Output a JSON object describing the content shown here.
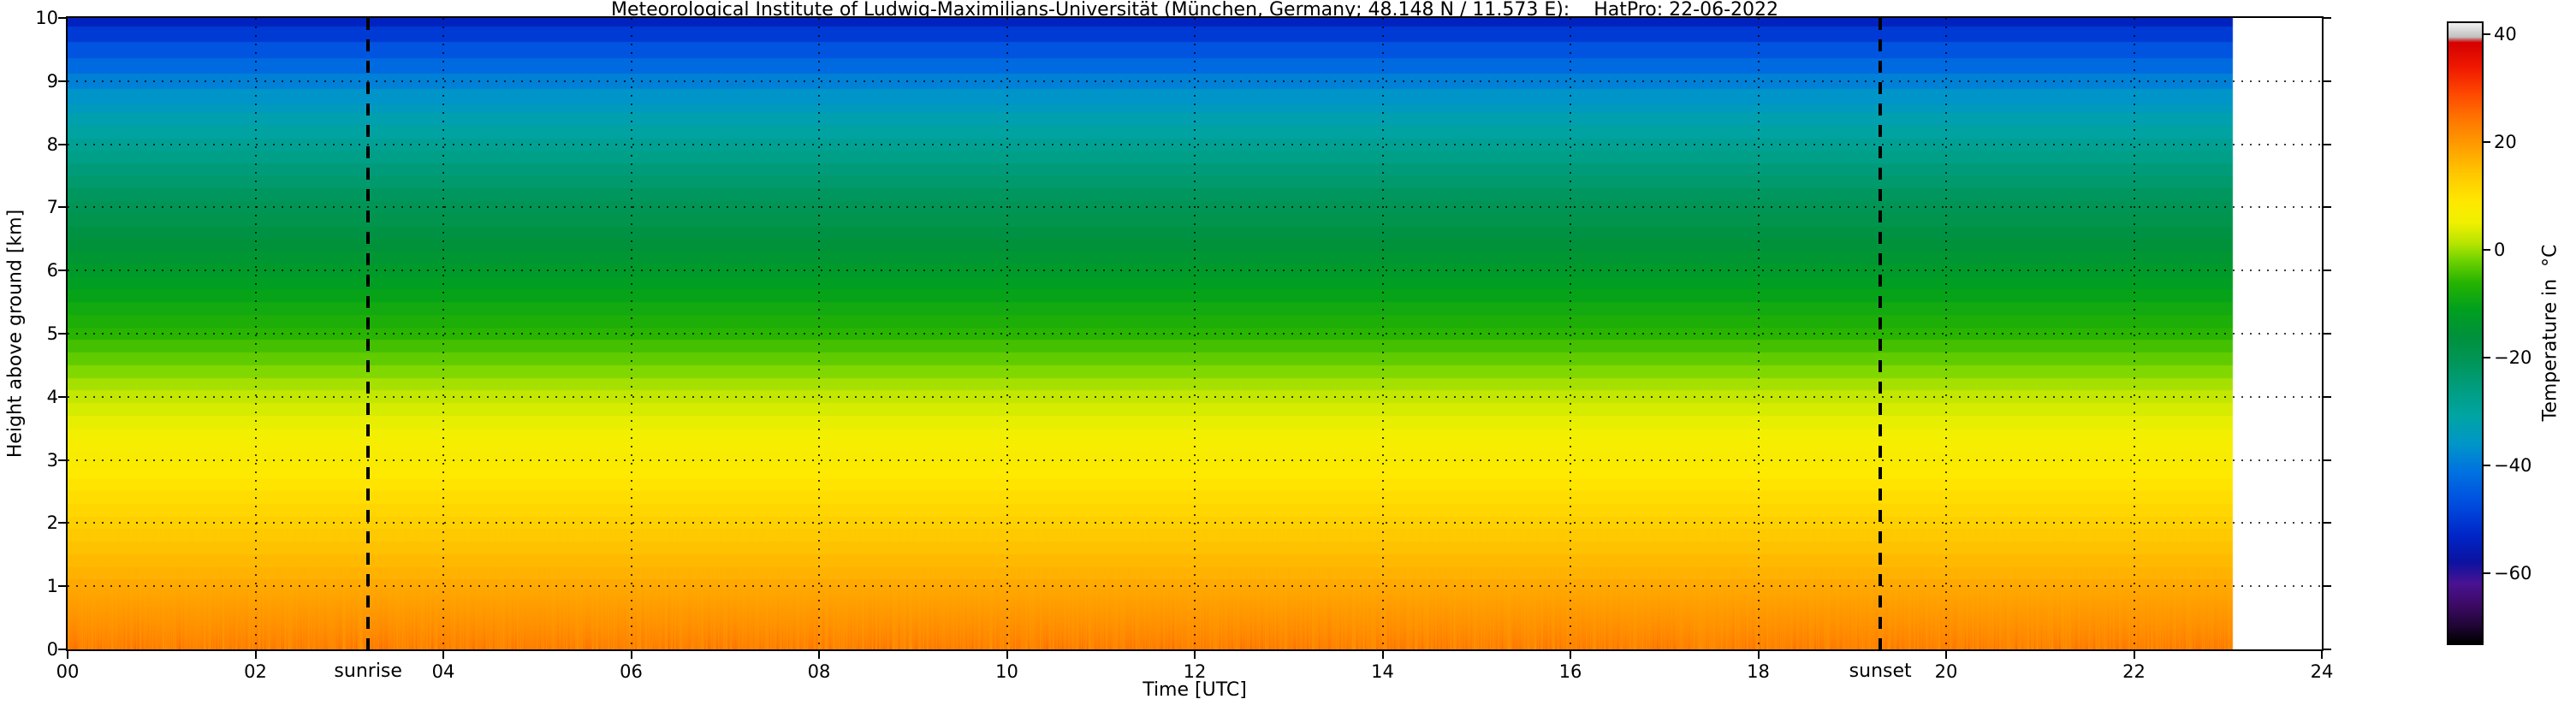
{
  "figure": {
    "background": "#ffffff"
  },
  "chart_data": {
    "type": "heatmap",
    "title": "Meteorological Institute of Ludwig-Maximilians-Universität (München, Germany; 48.148 N / 11.573 E):    HatPro: 22-06-2022",
    "xlabel": "Time [UTC]",
    "ylabel": "Height above ground [km]",
    "x_range": [
      0,
      24
    ],
    "x_tick_values": [
      0,
      2,
      4,
      6,
      8,
      10,
      12,
      14,
      16,
      18,
      20,
      22,
      24
    ],
    "x_tick_labels": [
      "00",
      "02",
      "04",
      "06",
      "08",
      "10",
      "12",
      "14",
      "16",
      "18",
      "20",
      "22",
      "24"
    ],
    "y_range": [
      0,
      10
    ],
    "y_tick_values": [
      0,
      1,
      2,
      3,
      4,
      5,
      6,
      7,
      8,
      9,
      10
    ],
    "y_tick_labels": [
      "0",
      "1",
      "2",
      "3",
      "4",
      "5",
      "6",
      "7",
      "8",
      "9",
      "10"
    ],
    "grid": true,
    "data_time_end": 23.05,
    "annotations": [
      {
        "name": "sunrise",
        "label": "sunrise",
        "time": 3.2,
        "style": "dashed"
      },
      {
        "name": "sunset",
        "label": "sunset",
        "time": 19.3,
        "style": "dashed"
      }
    ],
    "colorbar": {
      "label": "Temperature in  °C",
      "range": [
        -73,
        42
      ],
      "tick_values": [
        40,
        20,
        0,
        -20,
        -40,
        -60
      ],
      "tick_labels": [
        "40",
        "20",
        "0",
        "−20",
        "−40",
        "−60"
      ]
    },
    "colormap_stops": [
      [
        42,
        "#f0f0f0"
      ],
      [
        39.5,
        "#c0c0c0"
      ],
      [
        38.5,
        "#d40000"
      ],
      [
        34,
        "#f01800"
      ],
      [
        29,
        "#ff4800"
      ],
      [
        24,
        "#ff7800"
      ],
      [
        19,
        "#ffa000"
      ],
      [
        14,
        "#ffc800"
      ],
      [
        9,
        "#ffe800"
      ],
      [
        5,
        "#f0f000"
      ],
      [
        1,
        "#b4e400"
      ],
      [
        -2,
        "#6ed200"
      ],
      [
        -6,
        "#28b400"
      ],
      [
        -11,
        "#00a01e"
      ],
      [
        -16,
        "#00913c"
      ],
      [
        -21,
        "#00965a"
      ],
      [
        -26,
        "#009e82"
      ],
      [
        -31,
        "#00a4a4"
      ],
      [
        -36,
        "#0096c8"
      ],
      [
        -41,
        "#0073e0"
      ],
      [
        -47,
        "#004ee0"
      ],
      [
        -53,
        "#0026c8"
      ],
      [
        -58,
        "#0c12a0"
      ],
      [
        -62,
        "#4a1292"
      ],
      [
        -66,
        "#3c0a64"
      ],
      [
        -70,
        "#1e0532"
      ],
      [
        -73,
        "#000000"
      ]
    ],
    "profile": {
      "heights_km": [
        0,
        0.25,
        0.5,
        0.75,
        1,
        1.25,
        1.5,
        1.75,
        2,
        2.5,
        3,
        3.5,
        4,
        4.5,
        5,
        5.5,
        6,
        6.5,
        7,
        7.5,
        8,
        8.5,
        9,
        9.25,
        9.5,
        9.75,
        10
      ],
      "temperatures_c": [
        23,
        21.5,
        20.2,
        19,
        17.8,
        16.5,
        15.3,
        14,
        12.8,
        10.2,
        7.5,
        5,
        2,
        -2,
        -6,
        -9.5,
        -13,
        -16.5,
        -20,
        -24,
        -28.5,
        -33.5,
        -39,
        -42.5,
        -46,
        -50,
        -54
      ]
    },
    "surface_noise_c": 2.2
  }
}
